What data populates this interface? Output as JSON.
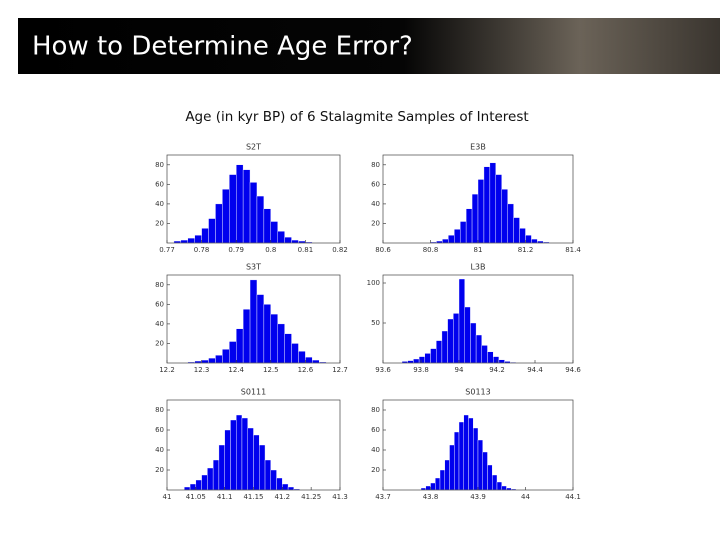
{
  "slide_title": "How to Determine Age Error?",
  "caption": "Age (in kyr BP) of 6 Stalagmite Samples of Interest",
  "chart_data": [
    {
      "type": "histogram",
      "title": "S2T",
      "color": "#0000ee",
      "bins": [
        0.772,
        0.774,
        0.776,
        0.778,
        0.78,
        0.782,
        0.784,
        0.786,
        0.788,
        0.79,
        0.792,
        0.794,
        0.796,
        0.798,
        0.8,
        0.802,
        0.804,
        0.806,
        0.808,
        0.81,
        0.812
      ],
      "values": [
        2,
        3,
        5,
        8,
        15,
        25,
        40,
        55,
        70,
        80,
        75,
        62,
        48,
        35,
        22,
        12,
        6,
        3,
        2,
        1
      ],
      "xlim": [
        0.77,
        0.82
      ],
      "xticks": [
        0.77,
        0.78,
        0.79,
        0.8,
        0.81,
        0.82
      ],
      "ylim": [
        0,
        90
      ],
      "yticks": [
        20,
        40,
        60,
        80
      ]
    },
    {
      "type": "histogram",
      "title": "E3B",
      "color": "#0000ee",
      "bins": [
        80.8,
        80.825,
        80.85,
        80.875,
        80.9,
        80.925,
        80.95,
        80.975,
        81,
        81.025,
        81.05,
        81.075,
        81.1,
        81.125,
        81.15,
        81.175,
        81.2,
        81.225,
        81.25,
        81.275,
        81.3
      ],
      "values": [
        1,
        2,
        4,
        8,
        14,
        22,
        35,
        50,
        65,
        78,
        82,
        70,
        55,
        40,
        26,
        15,
        8,
        4,
        2,
        1
      ],
      "xlim": [
        80.6,
        81.4
      ],
      "xticks": [
        80.6,
        80.8,
        81,
        81.2,
        81.4
      ],
      "ylim": [
        0,
        90
      ],
      "yticks": [
        20,
        40,
        60,
        80
      ]
    },
    {
      "type": "histogram",
      "title": "S3T",
      "color": "#0000ee",
      "bins": [
        12.26,
        12.28,
        12.3,
        12.32,
        12.34,
        12.36,
        12.38,
        12.4,
        12.42,
        12.44,
        12.46,
        12.48,
        12.5,
        12.52,
        12.54,
        12.56,
        12.58,
        12.6,
        12.62,
        12.64,
        12.66
      ],
      "values": [
        1,
        2,
        3,
        5,
        8,
        14,
        22,
        35,
        55,
        85,
        70,
        60,
        50,
        40,
        30,
        20,
        12,
        6,
        3,
        1
      ],
      "xlim": [
        12.2,
        12.7
      ],
      "xticks": [
        12.2,
        12.3,
        12.4,
        12.5,
        12.6,
        12.7
      ],
      "ylim": [
        0,
        90
      ],
      "yticks": [
        20,
        40,
        60,
        80
      ]
    },
    {
      "type": "histogram",
      "title": "L3B",
      "color": "#0000ee",
      "bins": [
        93.7,
        93.73,
        93.76,
        93.79,
        93.82,
        93.85,
        93.88,
        93.91,
        93.94,
        93.97,
        94,
        94.03,
        94.06,
        94.09,
        94.12,
        94.15,
        94.18,
        94.21,
        94.24,
        94.27,
        94.3
      ],
      "values": [
        2,
        3,
        5,
        8,
        12,
        18,
        28,
        40,
        55,
        62,
        105,
        70,
        50,
        35,
        22,
        14,
        8,
        4,
        2,
        1
      ],
      "xlim": [
        93.6,
        94.6
      ],
      "xticks": [
        93.6,
        93.8,
        94,
        94.2,
        94.4,
        94.6
      ],
      "ylim": [
        0,
        110
      ],
      "yticks": [
        50,
        100
      ]
    },
    {
      "type": "histogram",
      "title": "S0111",
      "color": "#0000ee",
      "bins": [
        41.03,
        41.04,
        41.05,
        41.06,
        41.07,
        41.08,
        41.09,
        41.1,
        41.11,
        41.12,
        41.13,
        41.14,
        41.15,
        41.16,
        41.17,
        41.18,
        41.19,
        41.2,
        41.21,
        41.22,
        41.23
      ],
      "values": [
        3,
        6,
        10,
        15,
        22,
        30,
        45,
        60,
        70,
        75,
        72,
        62,
        55,
        45,
        30,
        20,
        12,
        6,
        3,
        1
      ],
      "xlim": [
        41,
        41.3
      ],
      "xticks": [
        41,
        41.05,
        41.1,
        41.15,
        41.2,
        41.25,
        41.3
      ],
      "ylim": [
        0,
        90
      ],
      "yticks": [
        20,
        40,
        60,
        80
      ]
    },
    {
      "type": "histogram",
      "title": "S0113",
      "color": "#0000ee",
      "bins": [
        43.78,
        43.79,
        43.8,
        43.81,
        43.82,
        43.83,
        43.84,
        43.85,
        43.86,
        43.87,
        43.88,
        43.89,
        43.9,
        43.91,
        43.92,
        43.93,
        43.94,
        43.95,
        43.96,
        43.97,
        43.98
      ],
      "values": [
        2,
        4,
        7,
        12,
        20,
        30,
        45,
        58,
        68,
        75,
        72,
        62,
        50,
        38,
        25,
        15,
        8,
        4,
        2,
        1
      ],
      "xlim": [
        43.7,
        44.1
      ],
      "xticks": [
        43.7,
        43.8,
        43.9,
        44,
        44.1
      ],
      "ylim": [
        0,
        90
      ],
      "yticks": [
        20,
        40,
        60,
        80
      ]
    }
  ]
}
